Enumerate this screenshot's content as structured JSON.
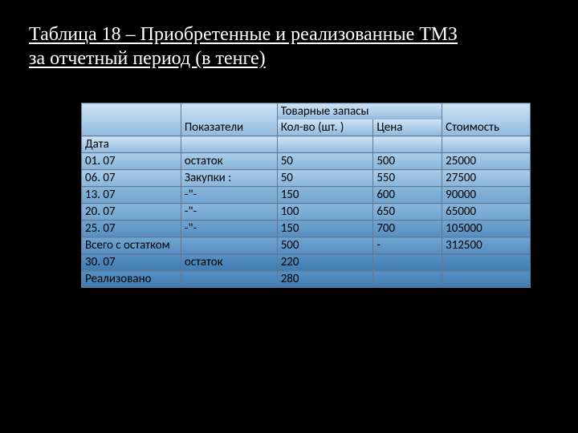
{
  "title_line1": "Таблица 18 – Приобретенные и реализованные ТМЗ",
  "title_line2": "за отчетный период (в тенге)",
  "table": {
    "header": {
      "indicators": "Показатели",
      "group": "Товарные запасы",
      "qty": "Кол-во (шт. )",
      "price": "Цена",
      "cost": "Стоимость"
    },
    "date_label": "Дата",
    "rows": [
      {
        "date": "01. 07",
        "ind": "остаток",
        "qty": "50",
        "price": "500",
        "cost": "25000"
      },
      {
        "date": "06. 07",
        "ind": "Закупки :",
        "qty": "50",
        "price": "550",
        "cost": "27500"
      },
      {
        "date": "13. 07",
        "ind": "-\"-",
        "qty": "150",
        "price": "600",
        "cost": "90000"
      },
      {
        "date": "20. 07",
        "ind": "-\"-",
        "qty": "100",
        "price": "650",
        "cost": "65000"
      },
      {
        "date": "25. 07",
        "ind": "-\"-",
        "qty": "150",
        "price": "700",
        "cost": "105000"
      }
    ],
    "total_row": {
      "date": "Всего         с остатком",
      "ind": "",
      "qty": "500",
      "price": "-",
      "cost": "312500"
    },
    "after_total": {
      "date": "30. 07",
      "ind": "остаток",
      "qty": "220",
      "price": "",
      "cost": ""
    },
    "realized": {
      "date": "Реализовано",
      "ind": "",
      "qty": "280",
      "price": "",
      "cost": ""
    }
  }
}
